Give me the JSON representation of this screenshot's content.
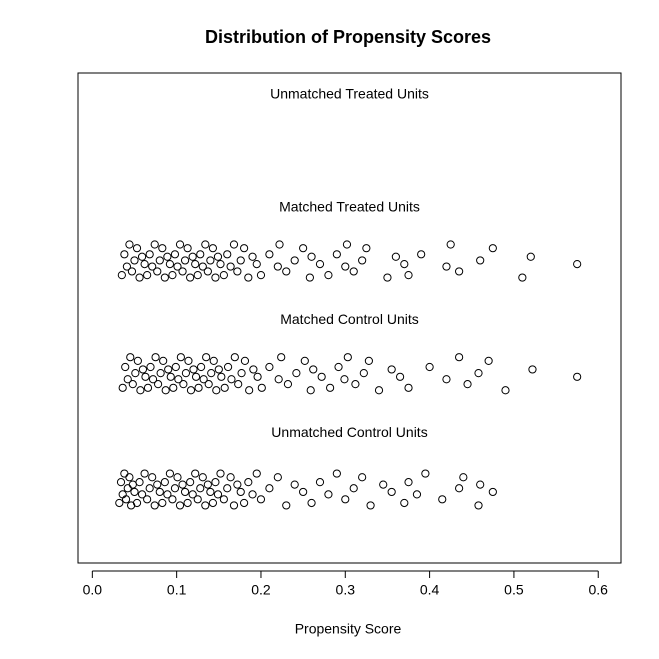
{
  "chart_data": {
    "type": "scatter",
    "title": "Distribution of Propensity Scores",
    "x_label": "Propensity Score",
    "xlim": [
      -0.017,
      0.627
    ],
    "ylim": [
      0,
      4
    ],
    "xticks": [
      {
        "value": 0,
        "label": "0.0"
      },
      0.1,
      0.2,
      0.3,
      0.4,
      0.5,
      0.6
    ],
    "series": [
      {
        "name": "Unmatched Treated Units",
        "color": "#000000",
        "x": [],
        "values": []
      },
      {
        "name": "Matched Treated Units",
        "color": "#000000",
        "x": [
          0.035,
          0.038,
          0.041,
          0.044,
          0.047,
          0.05,
          0.053,
          0.056,
          0.059,
          0.062,
          0.065,
          0.068,
          0.071,
          0.074,
          0.077,
          0.08,
          0.083,
          0.086,
          0.089,
          0.092,
          0.095,
          0.098,
          0.101,
          0.104,
          0.107,
          0.11,
          0.113,
          0.116,
          0.119,
          0.122,
          0.125,
          0.128,
          0.131,
          0.134,
          0.137,
          0.14,
          0.143,
          0.146,
          0.149,
          0.152,
          0.156,
          0.16,
          0.164,
          0.168,
          0.172,
          0.176,
          0.18,
          0.185,
          0.19,
          0.195,
          0.2,
          0.21,
          0.22,
          0.222,
          0.23,
          0.24,
          0.25,
          0.258,
          0.26,
          0.27,
          0.28,
          0.29,
          0.3,
          0.302,
          0.31,
          0.32,
          0.325,
          0.35,
          0.36,
          0.37,
          0.375,
          0.39,
          0.42,
          0.425,
          0.435,
          0.46,
          0.475,
          0.51,
          0.52,
          0.575
        ],
        "values": [
          2.35,
          2.52,
          2.42,
          2.6,
          2.38,
          2.47,
          2.57,
          2.33,
          2.5,
          2.44,
          2.35,
          2.52,
          2.42,
          2.6,
          2.38,
          2.47,
          2.57,
          2.33,
          2.5,
          2.44,
          2.35,
          2.52,
          2.42,
          2.6,
          2.38,
          2.47,
          2.57,
          2.33,
          2.5,
          2.44,
          2.35,
          2.52,
          2.42,
          2.6,
          2.38,
          2.47,
          2.57,
          2.33,
          2.5,
          2.44,
          2.35,
          2.52,
          2.42,
          2.6,
          2.38,
          2.47,
          2.57,
          2.33,
          2.5,
          2.44,
          2.35,
          2.52,
          2.42,
          2.6,
          2.38,
          2.47,
          2.57,
          2.33,
          2.5,
          2.44,
          2.35,
          2.52,
          2.42,
          2.6,
          2.38,
          2.47,
          2.57,
          2.33,
          2.5,
          2.44,
          2.35,
          2.52,
          2.42,
          2.6,
          2.38,
          2.47,
          2.57,
          2.33,
          2.5,
          2.44
        ]
      },
      {
        "name": "Matched Control Units",
        "color": "#000000",
        "x": [
          0.036,
          0.039,
          0.042,
          0.045,
          0.048,
          0.051,
          0.054,
          0.057,
          0.06,
          0.063,
          0.066,
          0.069,
          0.072,
          0.075,
          0.078,
          0.081,
          0.084,
          0.087,
          0.09,
          0.093,
          0.096,
          0.099,
          0.102,
          0.105,
          0.108,
          0.111,
          0.114,
          0.117,
          0.12,
          0.123,
          0.126,
          0.129,
          0.132,
          0.135,
          0.138,
          0.141,
          0.144,
          0.147,
          0.15,
          0.153,
          0.157,
          0.161,
          0.165,
          0.169,
          0.173,
          0.177,
          0.181,
          0.186,
          0.191,
          0.196,
          0.201,
          0.21,
          0.221,
          0.224,
          0.232,
          0.242,
          0.252,
          0.259,
          0.262,
          0.272,
          0.282,
          0.292,
          0.299,
          0.303,
          0.312,
          0.322,
          0.328,
          0.34,
          0.355,
          0.365,
          0.375,
          0.4,
          0.42,
          0.435,
          0.445,
          0.458,
          0.47,
          0.49,
          0.522,
          0.575
        ],
        "values": [
          1.43,
          1.6,
          1.5,
          1.68,
          1.46,
          1.55,
          1.65,
          1.41,
          1.58,
          1.52,
          1.43,
          1.6,
          1.5,
          1.68,
          1.46,
          1.55,
          1.65,
          1.41,
          1.58,
          1.52,
          1.43,
          1.6,
          1.5,
          1.68,
          1.46,
          1.55,
          1.65,
          1.41,
          1.58,
          1.52,
          1.43,
          1.6,
          1.5,
          1.68,
          1.46,
          1.55,
          1.65,
          1.41,
          1.58,
          1.52,
          1.43,
          1.6,
          1.5,
          1.68,
          1.46,
          1.55,
          1.65,
          1.41,
          1.58,
          1.52,
          1.43,
          1.6,
          1.5,
          1.68,
          1.46,
          1.55,
          1.65,
          1.41,
          1.58,
          1.52,
          1.43,
          1.6,
          1.5,
          1.68,
          1.46,
          1.55,
          1.65,
          1.41,
          1.58,
          1.52,
          1.43,
          1.6,
          1.5,
          1.68,
          1.46,
          1.55,
          1.65,
          1.41,
          1.58,
          1.52
        ]
      },
      {
        "name": "Unmatched Control Units",
        "color": "#000000",
        "x": [
          0.032,
          0.034,
          0.036,
          0.038,
          0.04,
          0.042,
          0.044,
          0.046,
          0.048,
          0.05,
          0.053,
          0.056,
          0.059,
          0.062,
          0.065,
          0.068,
          0.071,
          0.074,
          0.077,
          0.08,
          0.083,
          0.086,
          0.089,
          0.092,
          0.095,
          0.098,
          0.101,
          0.104,
          0.107,
          0.11,
          0.113,
          0.116,
          0.119,
          0.122,
          0.125,
          0.128,
          0.131,
          0.134,
          0.137,
          0.14,
          0.143,
          0.146,
          0.149,
          0.152,
          0.156,
          0.16,
          0.164,
          0.168,
          0.172,
          0.176,
          0.18,
          0.185,
          0.19,
          0.195,
          0.2,
          0.21,
          0.22,
          0.23,
          0.24,
          0.25,
          0.26,
          0.27,
          0.28,
          0.29,
          0.3,
          0.31,
          0.32,
          0.33,
          0.345,
          0.355,
          0.37,
          0.375,
          0.385,
          0.395,
          0.415,
          0.435,
          0.44,
          0.458,
          0.46,
          0.475
        ],
        "values": [
          0.49,
          0.66,
          0.56,
          0.73,
          0.52,
          0.61,
          0.7,
          0.47,
          0.64,
          0.58,
          0.49,
          0.66,
          0.56,
          0.73,
          0.52,
          0.61,
          0.7,
          0.47,
          0.64,
          0.58,
          0.49,
          0.66,
          0.56,
          0.73,
          0.52,
          0.61,
          0.7,
          0.47,
          0.64,
          0.58,
          0.49,
          0.66,
          0.56,
          0.73,
          0.52,
          0.61,
          0.7,
          0.47,
          0.64,
          0.58,
          0.49,
          0.66,
          0.56,
          0.73,
          0.52,
          0.61,
          0.7,
          0.47,
          0.64,
          0.58,
          0.49,
          0.66,
          0.56,
          0.73,
          0.52,
          0.61,
          0.7,
          0.47,
          0.64,
          0.58,
          0.49,
          0.66,
          0.56,
          0.73,
          0.52,
          0.61,
          0.7,
          0.47,
          0.64,
          0.58,
          0.49,
          0.66,
          0.56,
          0.73,
          0.52,
          0.61,
          0.7,
          0.47,
          0.64,
          0.58
        ]
      }
    ]
  }
}
